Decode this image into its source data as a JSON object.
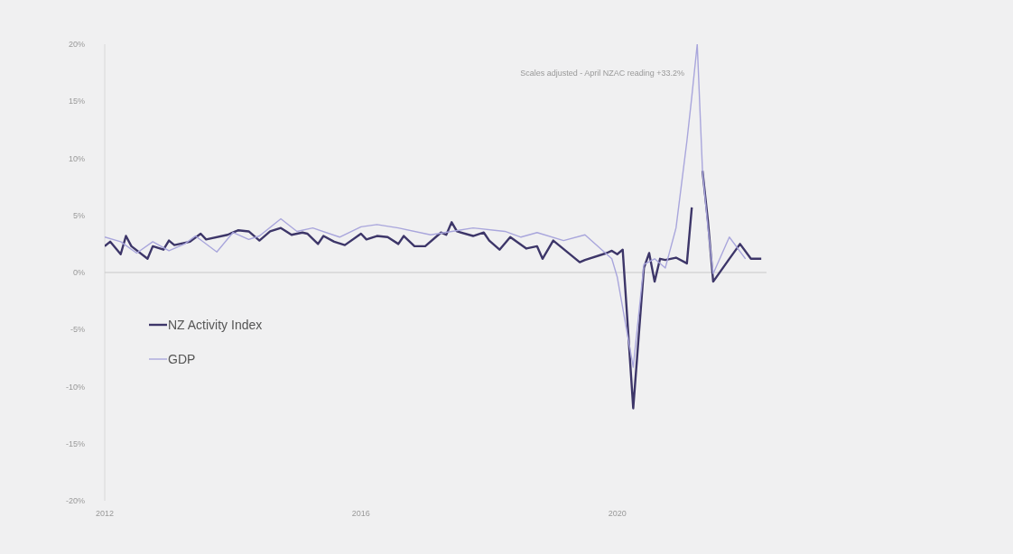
{
  "chart_data": {
    "type": "line",
    "series": [
      {
        "name": "NZ Activity Index",
        "color": "#3d3669",
        "x": [
          "2012-01",
          "2012-02",
          "2012-04",
          "2012-05",
          "2012-06",
          "2012-09",
          "2012-10",
          "2012-12",
          "2013-01",
          "2013-02",
          "2013-05",
          "2013-07",
          "2013-08",
          "2013-12",
          "2014-02",
          "2014-04",
          "2014-06",
          "2014-08",
          "2014-10",
          "2014-12",
          "2015-02",
          "2015-03",
          "2015-05",
          "2015-06",
          "2015-08",
          "2015-10",
          "2016-01",
          "2016-02",
          "2016-04",
          "2016-06",
          "2016-08",
          "2016-09",
          "2016-11",
          "2017-01",
          "2017-04",
          "2017-05",
          "2017-06",
          "2017-07",
          "2017-10",
          "2017-12",
          "2018-01",
          "2018-03",
          "2018-05",
          "2018-08",
          "2018-10",
          "2018-11",
          "2019-01",
          "2019-06",
          "2019-07",
          "2019-11",
          "2019-12",
          "2020-01",
          "2020-02",
          "2020-04",
          "2020-06",
          "2020-07",
          "2020-08",
          "2020-09",
          "2020-10",
          "2020-12",
          "2021-02",
          "2021-03",
          "2021-04",
          "2021-05",
          "2021-06",
          "2021-07",
          "2021-10",
          "2021-12",
          "2022-02",
          "2022-04"
        ],
        "values": [
          2.3,
          2.7,
          1.6,
          3.2,
          2.3,
          1.2,
          2.3,
          2.0,
          2.8,
          2.4,
          2.7,
          3.4,
          2.9,
          3.3,
          3.7,
          3.6,
          2.8,
          3.6,
          3.9,
          3.3,
          3.5,
          3.4,
          2.5,
          3.2,
          2.7,
          2.4,
          3.4,
          2.9,
          3.2,
          3.1,
          2.5,
          3.2,
          2.3,
          2.3,
          3.5,
          3.3,
          4.4,
          3.6,
          3.2,
          3.5,
          2.8,
          2.0,
          3.1,
          2.1,
          2.3,
          1.2,
          2.8,
          0.9,
          1.1,
          1.7,
          1.9,
          1.6,
          2.0,
          -11.9,
          0.4,
          1.7,
          -0.8,
          1.2,
          1.1,
          1.3,
          0.8,
          5.7,
          null,
          8.9,
          4.5,
          -0.8,
          1.2,
          2.5,
          1.2,
          1.2
        ]
      },
      {
        "name": "GDP",
        "color": "#a9a6dc",
        "x": [
          "2012-01",
          "2012-04",
          "2012-07",
          "2012-10",
          "2013-01",
          "2013-04",
          "2013-06",
          "2013-10",
          "2014-01",
          "2014-04",
          "2014-06",
          "2014-10",
          "2015-01",
          "2015-04",
          "2015-09",
          "2016-01",
          "2016-04",
          "2016-08",
          "2017-02",
          "2017-10",
          "2018-04",
          "2018-07",
          "2018-10",
          "2019-03",
          "2019-07",
          "2019-12",
          "2020-01",
          "2020-04",
          "2020-06",
          "2020-08",
          "2020-10",
          "2020-12",
          "2021-02",
          "2021-03",
          "2021-04",
          "2021-05",
          "2021-06",
          "2021-07",
          "2021-10",
          "2022-01"
        ],
        "values": [
          3.1,
          2.7,
          1.7,
          2.7,
          1.9,
          2.5,
          3.2,
          1.8,
          3.5,
          2.9,
          3.2,
          4.7,
          3.6,
          3.9,
          3.1,
          4.0,
          4.2,
          3.9,
          3.3,
          3.9,
          3.6,
          3.1,
          3.5,
          2.8,
          3.3,
          1.2,
          -0.4,
          -8.3,
          0.7,
          1.2,
          0.4,
          3.9,
          11.5,
          15.4,
          20,
          8.9,
          3.9,
          -0.1,
          3.1,
          1.2
        ]
      }
    ],
    "xlim": [
      "2012-01",
      "2022-05"
    ],
    "xticks": [
      {
        "value": "2012-01",
        "label": "2012"
      },
      {
        "value": "2016-01",
        "label": "2016"
      },
      {
        "value": "2020-01",
        "label": "2020"
      }
    ],
    "ylim": [
      -20,
      20
    ],
    "yticks": [
      {
        "value": -20,
        "label": "-20%"
      },
      {
        "value": -15,
        "label": "-15%"
      },
      {
        "value": -10,
        "label": "-10%"
      },
      {
        "value": -5,
        "label": "-5%"
      },
      {
        "value": 0,
        "label": "0%"
      },
      {
        "value": 5,
        "label": "5%"
      },
      {
        "value": 10,
        "label": "10%"
      },
      {
        "value": 15,
        "label": "15%"
      },
      {
        "value": 20,
        "label": "20%"
      }
    ],
    "ref_lines": [
      {
        "axis": "y",
        "value": 0,
        "color": "#c8c8c8"
      }
    ],
    "annotations": [
      "Scales adjusted - April NZAC reading +33.2%"
    ],
    "legend": "left",
    "grid": false,
    "line_style": "solid"
  }
}
